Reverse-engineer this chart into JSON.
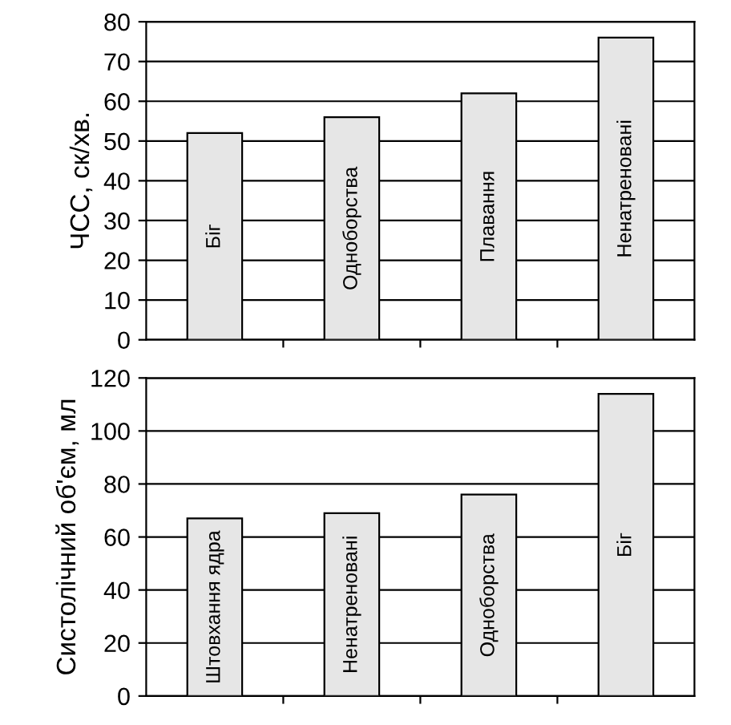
{
  "chart_data": [
    {
      "type": "bar",
      "ylabel": "ЧСС, ск/хв.",
      "categories": [
        "Біг",
        "Одноборства",
        "Плавання",
        "Ненатреновані"
      ],
      "values": [
        52,
        56,
        62,
        76
      ],
      "color": "#e6e6e6",
      "ylim": [
        0,
        80
      ],
      "yticks": [
        0,
        10,
        20,
        30,
        40,
        50,
        60,
        70,
        80
      ],
      "grid": "y"
    },
    {
      "type": "bar",
      "ylabel": "Систолічний об'єм, мл",
      "categories": [
        "Штовхання ядра",
        "Ненатреновані",
        "Одноборства",
        "Біг"
      ],
      "values": [
        67,
        69,
        76,
        114
      ],
      "color": "#e6e6e6",
      "ylim": [
        0,
        120
      ],
      "yticks": [
        0,
        20,
        40,
        60,
        80,
        100,
        120
      ],
      "grid": "y"
    }
  ]
}
